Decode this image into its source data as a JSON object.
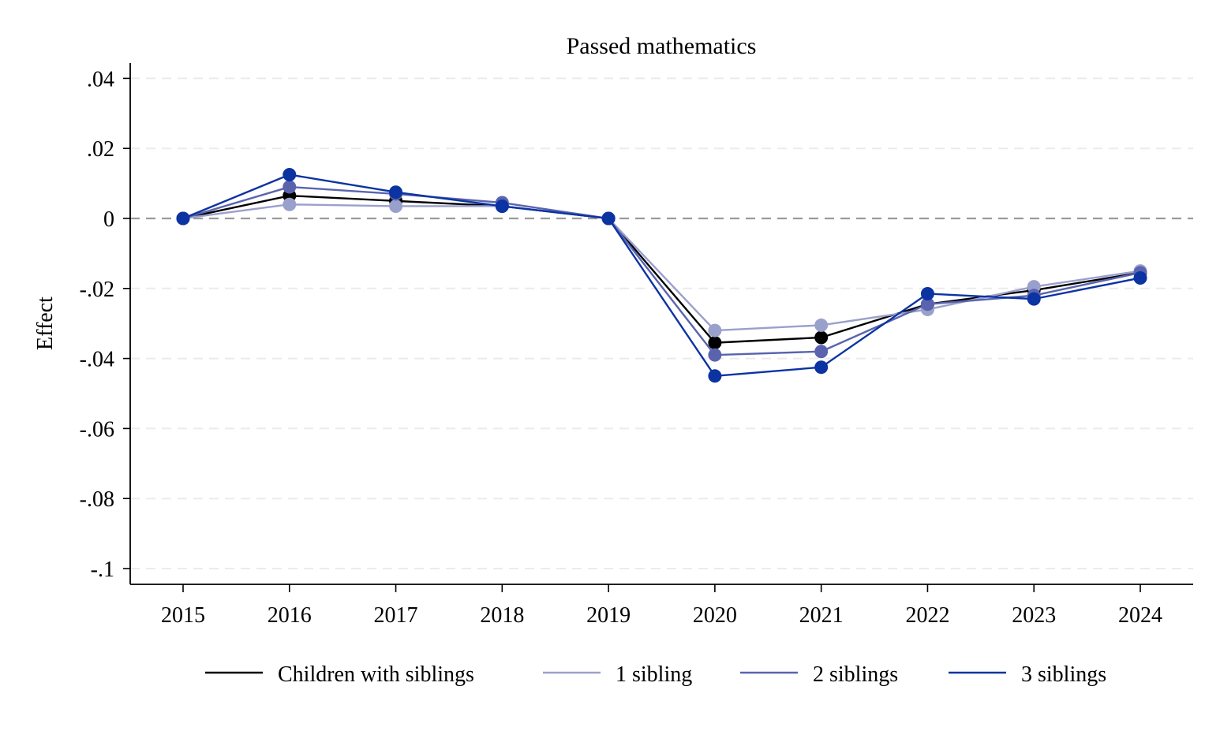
{
  "chart_data": {
    "type": "line",
    "title": "Passed mathematics",
    "xlabel": "",
    "ylabel": "Effect",
    "x": [
      2015,
      2016,
      2017,
      2018,
      2019,
      2020,
      2021,
      2022,
      2023,
      2024
    ],
    "x_tick_labels": [
      "2015",
      "2016",
      "2017",
      "2018",
      "2019",
      "2020",
      "2021",
      "2022",
      "2023",
      "2024"
    ],
    "ylim": [
      -0.105,
      0.044
    ],
    "y_ticks": [
      0.04,
      0.02,
      0,
      -0.02,
      -0.04,
      -0.06,
      -0.08,
      -0.1
    ],
    "y_tick_labels": [
      ".04",
      ".02",
      "0",
      "-.02",
      "-.04",
      "-.06",
      "-.08",
      "-.1"
    ],
    "grid": "horizontal dashed",
    "reference_line": 0,
    "legend_position": "bottom",
    "series": [
      {
        "name": "Children with siblings",
        "color": "#000000",
        "values": [
          0,
          0.0065,
          0.005,
          0.0035,
          0,
          -0.0355,
          -0.034,
          -0.0245,
          -0.0205,
          -0.0155
        ]
      },
      {
        "name": "1 sibling",
        "color": "#9aa0cc",
        "values": [
          0,
          0.004,
          0.0035,
          0.0035,
          0,
          -0.032,
          -0.0305,
          -0.026,
          -0.0195,
          -0.015
        ]
      },
      {
        "name": "2 siblings",
        "color": "#5a64ae",
        "values": [
          0,
          0.009,
          0.007,
          0.0045,
          0,
          -0.039,
          -0.038,
          -0.0245,
          -0.022,
          -0.0155
        ]
      },
      {
        "name": "3 siblings",
        "color": "#0b33a2",
        "values": [
          0,
          0.0125,
          0.0075,
          0.0035,
          0,
          -0.045,
          -0.0425,
          -0.0215,
          -0.023,
          -0.017
        ]
      }
    ]
  }
}
